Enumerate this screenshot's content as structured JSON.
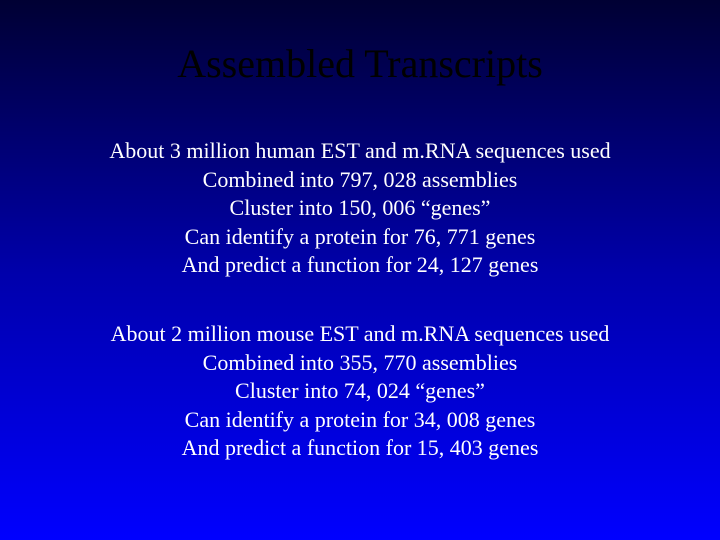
{
  "slide": {
    "title": "Assembled Transcripts",
    "background_gradient": [
      "#000033",
      "#0000aa",
      "#0000ff"
    ],
    "title_color": "#000000",
    "text_color": "#ffffff",
    "title_fontsize": 40,
    "body_fontsize": 22,
    "font_family": "Times New Roman",
    "sections": [
      {
        "lines": [
          "About 3 million human EST and m.RNA sequences used",
          "Combined into 797, 028 assemblies",
          "Cluster into 150, 006 “genes”",
          "Can identify a protein for 76, 771 genes",
          "And predict a function for 24, 127 genes"
        ]
      },
      {
        "lines": [
          "About 2 million mouse EST and m.RNA sequences used",
          "Combined into 355, 770 assemblies",
          "Cluster into 74, 024 “genes”",
          "Can identify a protein for 34, 008 genes",
          "And predict a function for 15, 403 genes"
        ]
      }
    ]
  }
}
